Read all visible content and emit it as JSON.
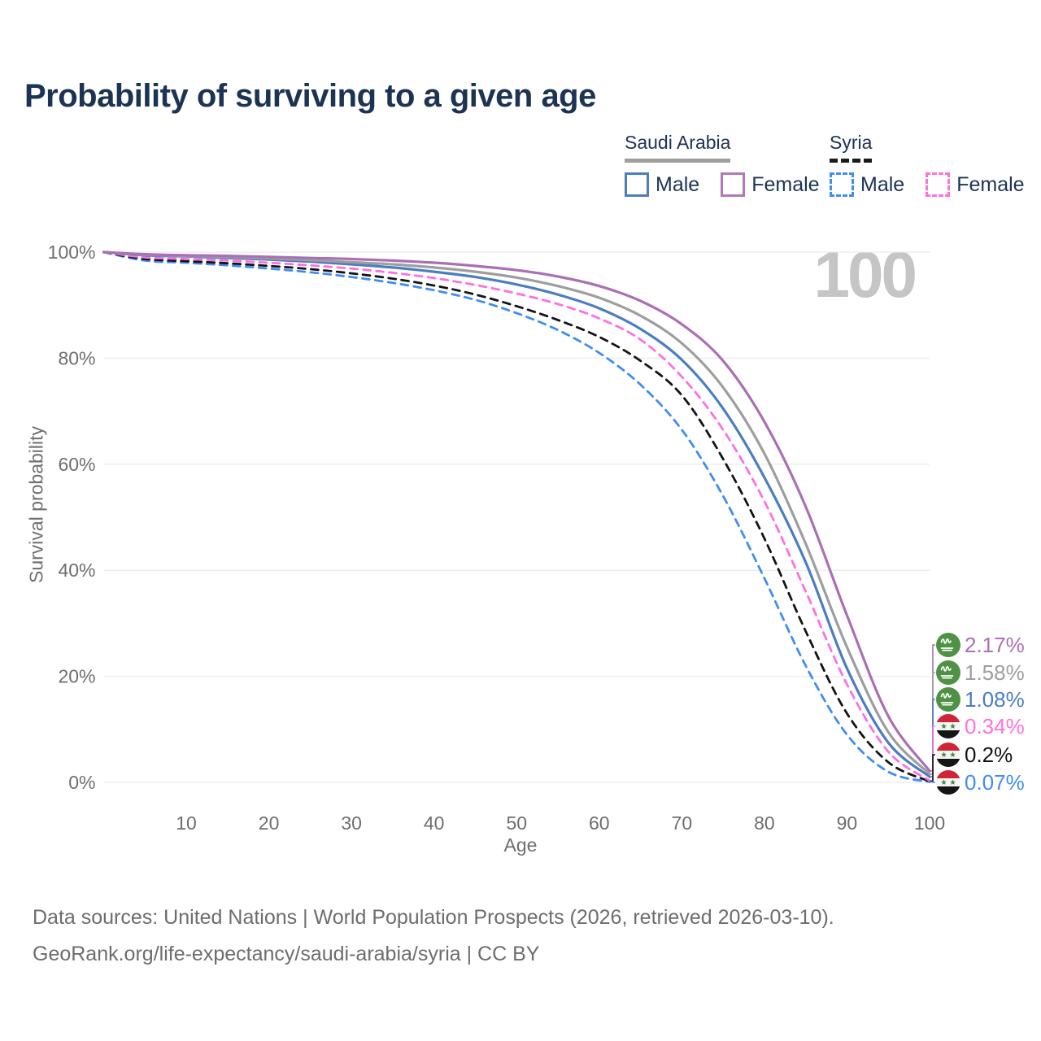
{
  "title": "Probability of surviving to a given age",
  "watermark": "100",
  "legend": {
    "saudi_arabia": {
      "label": "Saudi Arabia",
      "male": "Male",
      "female": "Female"
    },
    "syria": {
      "label": "Syria",
      "male": "Male",
      "female": "Female"
    }
  },
  "colors": {
    "sa_female": "#ab6fb5",
    "sa_total": "#9e9e9e",
    "sa_male": "#4a7ec1",
    "sy_female": "#ff6fe0",
    "sy_total": "#141414",
    "sy_male": "#3f8df5",
    "grid": "#ebebeb",
    "axis_text": "#6e6e6e",
    "title_text": "#1d3354",
    "watermark_text": "#c5c5c5",
    "footer_text": "#6d6d6d",
    "flag_saudi_green": "#4f9245",
    "flag_syria_red": "#ce2634",
    "flag_syria_white": "#f5f5f5",
    "flag_syria_black": "#151515",
    "flag_syria_star_green": "#3e8f3e"
  },
  "chart_data": {
    "type": "line",
    "title": "Probability of surviving to a given age",
    "xlabel": "Age",
    "ylabel": "Survival probability",
    "xlim": [
      0,
      100
    ],
    "ylim": [
      0,
      100
    ],
    "grid": "horizontal-only",
    "legend_position": "top-right",
    "x_ticks": [
      10,
      20,
      30,
      40,
      50,
      60,
      70,
      80,
      90,
      100
    ],
    "y_tick_values": [
      0,
      20,
      40,
      60,
      80,
      100
    ],
    "y_tick_labels": [
      "0%",
      "20%",
      "40%",
      "60%",
      "80%",
      "100%"
    ],
    "x": [
      0,
      5,
      10,
      15,
      20,
      25,
      30,
      35,
      40,
      45,
      50,
      55,
      60,
      65,
      70,
      75,
      80,
      85,
      90,
      95,
      100
    ],
    "series": [
      {
        "name": "Saudi Arabia Female",
        "country": "Saudi Arabia",
        "sex": "Female",
        "style": "solid",
        "color_key": "sa_female",
        "flag": "saudi",
        "end_label": "2.17%",
        "values": [
          100,
          99.6,
          99.4,
          99.3,
          99.1,
          98.9,
          98.7,
          98.4,
          98.0,
          97.4,
          96.6,
          95.4,
          93.6,
          90.8,
          86.4,
          79.5,
          68.0,
          52.0,
          31.5,
          12.5,
          2.17
        ]
      },
      {
        "name": "Saudi Arabia",
        "country": "Saudi Arabia",
        "sex": "All",
        "style": "solid",
        "color_key": "sa_total",
        "flag": "saudi",
        "end_label": "1.58%",
        "values": [
          100,
          99.5,
          99.3,
          99.1,
          98.8,
          98.5,
          98.1,
          97.7,
          97.1,
          96.3,
          95.2,
          93.6,
          91.4,
          88.0,
          82.8,
          74.5,
          62.0,
          45.0,
          25.5,
          9.5,
          1.58
        ]
      },
      {
        "name": "Saudi Arabia Male",
        "country": "Saudi Arabia",
        "sex": "Male",
        "style": "solid",
        "color_key": "sa_male",
        "flag": "saudi",
        "end_label": "1.08%",
        "values": [
          100,
          99.4,
          99.2,
          98.9,
          98.6,
          98.2,
          97.7,
          97.1,
          96.3,
          95.3,
          93.9,
          92.0,
          89.4,
          85.5,
          79.7,
          70.5,
          57.5,
          41.5,
          21.5,
          7.5,
          1.08
        ]
      },
      {
        "name": "Syria Female",
        "country": "Syria",
        "sex": "Female",
        "style": "dashed",
        "color_key": "sy_female",
        "flag": "syria",
        "end_label": "0.34%",
        "values": [
          100,
          99.0,
          98.7,
          98.4,
          98.0,
          97.5,
          96.9,
          96.1,
          95.1,
          93.8,
          92.2,
          90.2,
          87.5,
          83.5,
          76.5,
          66.5,
          53.0,
          36.0,
          18.5,
          5.8,
          0.34
        ]
      },
      {
        "name": "Syria",
        "country": "Syria",
        "sex": "All",
        "style": "dashed",
        "color_key": "sy_total",
        "flag": "syria",
        "end_label": "0.2%",
        "values": [
          100,
          98.7,
          98.3,
          97.9,
          97.4,
          96.8,
          96.0,
          95.0,
          93.7,
          92.0,
          89.8,
          87.2,
          84.0,
          79.5,
          73.0,
          61.0,
          46.0,
          28.5,
          13.0,
          3.8,
          0.2
        ]
      },
      {
        "name": "Syria Male",
        "country": "Syria",
        "sex": "Male",
        "style": "dashed",
        "color_key": "sy_male",
        "flag": "syria",
        "end_label": "0.07%",
        "values": [
          100,
          98.4,
          98.0,
          97.5,
          96.9,
          96.2,
          95.3,
          94.2,
          92.8,
          91.0,
          88.5,
          85.3,
          81.0,
          75.0,
          66.5,
          54.0,
          38.5,
          22.0,
          9.0,
          2.0,
          0.07
        ]
      }
    ]
  },
  "footer": {
    "line1": "Data sources: United Nations | World Population Prospects (2026, retrieved 2026-03-10).",
    "line2": "GeoRank.org/life-expectancy/saudi-arabia/syria | CC BY"
  }
}
